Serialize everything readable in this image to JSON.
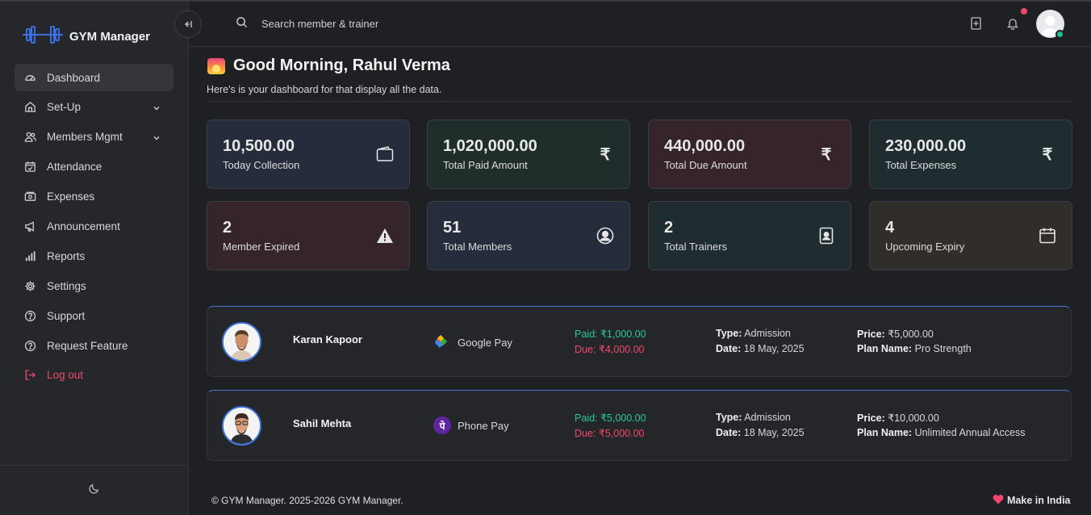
{
  "app": {
    "name": "GYM Manager"
  },
  "sidebar": {
    "items": [
      {
        "label": "Dashboard",
        "icon": "gauge-icon"
      },
      {
        "label": "Set-Up",
        "icon": "home-icon"
      },
      {
        "label": "Members Mgmt",
        "icon": "users-icon"
      },
      {
        "label": "Attendance",
        "icon": "calendar-check-icon"
      },
      {
        "label": "Expenses",
        "icon": "cash-icon"
      },
      {
        "label": "Announcement",
        "icon": "megaphone-icon"
      },
      {
        "label": "Reports",
        "icon": "bar-chart-icon"
      },
      {
        "label": "Settings",
        "icon": "gear-icon"
      },
      {
        "label": "Support",
        "icon": "help-circle-icon"
      },
      {
        "label": "Request Feature",
        "icon": "help-circle-icon"
      },
      {
        "label": "Log out",
        "icon": "logout-icon"
      }
    ]
  },
  "topbar": {
    "search_placeholder": "Search member & trainer"
  },
  "greeting": {
    "title": "Good Morning, Rahul Verma",
    "subtitle": "Here's is your dashboard for that display all the data."
  },
  "stats": [
    {
      "value": "10,500.00",
      "label": "Today Collection",
      "icon": "wallet-icon"
    },
    {
      "value": "1,020,000.00",
      "label": "Total Paid Amount",
      "icon": "rupee-icon"
    },
    {
      "value": "440,000.00",
      "label": "Total Due Amount",
      "icon": "rupee-icon"
    },
    {
      "value": "230,000.00",
      "label": "Total Expenses",
      "icon": "rupee-icon"
    },
    {
      "value": "2",
      "label": "Member Expired",
      "icon": "warning-icon"
    },
    {
      "value": "51",
      "label": "Total Members",
      "icon": "user-circle-icon"
    },
    {
      "value": "2",
      "label": "Total Trainers",
      "icon": "id-badge-icon"
    },
    {
      "value": "4",
      "label": "Upcoming Expiry",
      "icon": "calendar-icon"
    }
  ],
  "rupee_symbol": "₹",
  "payments": [
    {
      "name": "Karan Kapoor",
      "method": "Google Pay",
      "paid": "Paid: ₹1,000.00",
      "due": "Due: ₹4,000.00",
      "type_label": "Type:",
      "type": "Admission",
      "date_label": "Date:",
      "date": "18 May, 2025",
      "price_label": "Price:",
      "price": "₹5,000.00",
      "plan_label": "Plan Name:",
      "plan": "Pro Strength"
    },
    {
      "name": "Sahil Mehta",
      "method": "Phone Pay",
      "paid": "Paid: ₹5,000.00",
      "due": "Due: ₹5,000.00",
      "type_label": "Type:",
      "type": "Admission",
      "date_label": "Date:",
      "date": "18 May, 2025",
      "price_label": "Price:",
      "price": "₹10,000.00",
      "plan_label": "Plan Name:",
      "plan": "Unlimited Annual Access"
    }
  ],
  "phonepe_glyph": "पे",
  "footer": {
    "copyright": "© GYM Manager. 2025-2026 GYM Manager.",
    "made_in": "Make in India"
  },
  "colors": {
    "accent_blue": "#3b74e0",
    "paid_green": "#27c99a",
    "due_red": "#f0476a",
    "logout_red": "#f0476a",
    "online_green": "#22c28a"
  }
}
